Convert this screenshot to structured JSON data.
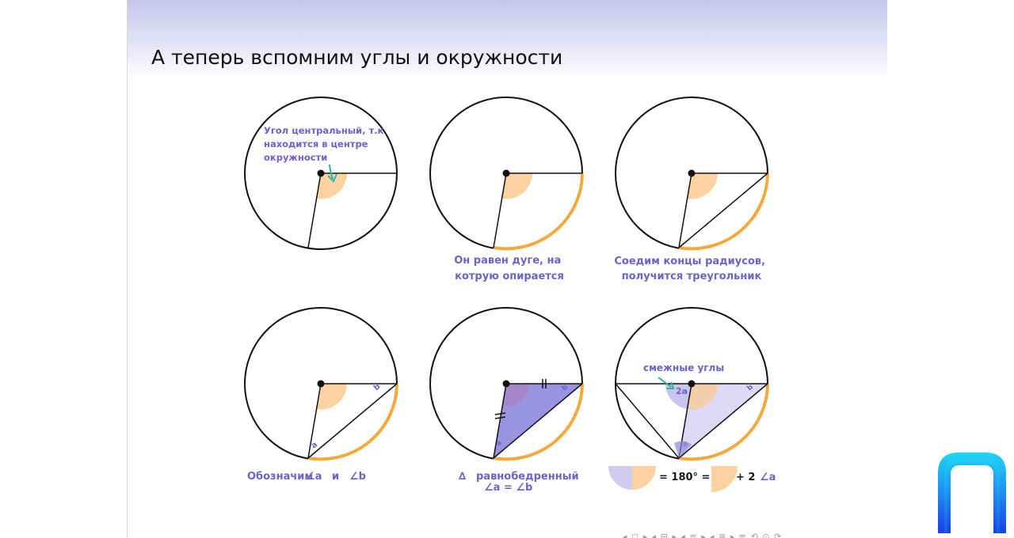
{
  "slide": {
    "title": "А теперь вспомним углы и окружности"
  },
  "diagram": {
    "annotation_central": [
      "Угол центральный, т.к",
      "находится в центре",
      "окружности"
    ],
    "caption_arc": [
      "Он равен дуге, на",
      "котрую опирается"
    ],
    "caption_triangle": [
      "Соедим концы радиусов,",
      "получится треугольник"
    ],
    "caption_denote": {
      "text": "Обозначим",
      "angle_a": "∠a",
      "conj": "и",
      "angle_b": "∠b"
    },
    "caption_isosceles": {
      "triangle_symbol": "∆",
      "word": "равнобедренный",
      "equation": "∠a = ∠b"
    },
    "label_adjacent": "смежные углы",
    "label_2a": "2a",
    "label_a": "a",
    "label_b": "b",
    "equation": {
      "part1": "= 180° =",
      "part2": "+ 2",
      "angle": "∠a"
    }
  },
  "colors": {
    "arc": "#f4a93c",
    "angle_fill": "#fcd3a0",
    "triangle_fill": "#8e88dc",
    "caption": "#6a63c8",
    "arrow": "#2bb3a5",
    "logo": "#1e5df0"
  },
  "navigation": {
    "symbols": "◂ ◻ ▸ ◂ ⊟ ▸ ◂ ≡ ▸ ◂ ≣ ▸   ≡  ⟲ ⊙ ⟳"
  }
}
